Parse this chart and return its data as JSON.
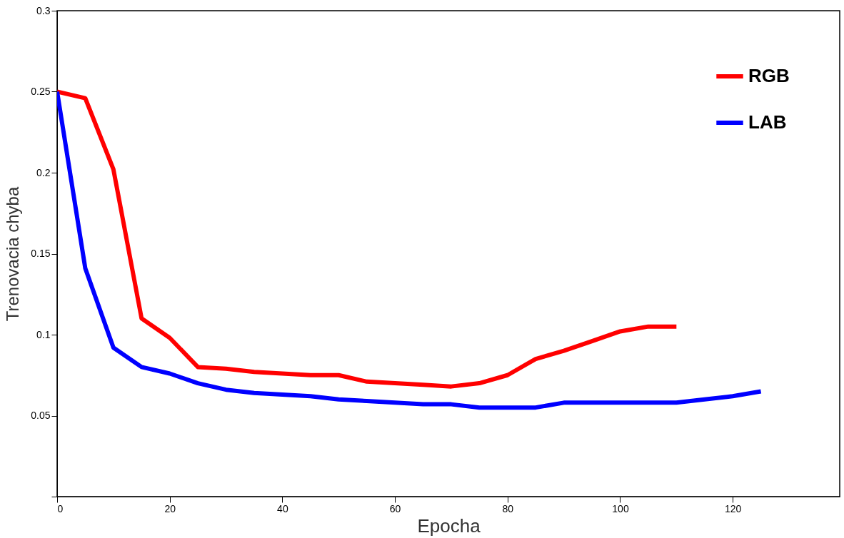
{
  "chart_data": {
    "type": "line",
    "xlabel": "Epocha",
    "ylabel": "Trenovacia chyba",
    "x": [
      0,
      5,
      10,
      15,
      20,
      25,
      30,
      35,
      40,
      45,
      50,
      55,
      60,
      65,
      70,
      75,
      80,
      85,
      90,
      95,
      100,
      105,
      110,
      115,
      120,
      125
    ],
    "series": [
      {
        "name": "RGB",
        "color": "#ff0000",
        "values": [
          0.25,
          0.246,
          0.202,
          0.11,
          0.098,
          0.08,
          0.079,
          0.077,
          0.076,
          0.075,
          0.075,
          0.071,
          0.07,
          0.069,
          0.068,
          0.07,
          0.075,
          0.085,
          0.09,
          0.096,
          0.102,
          0.105,
          0.105,
          null,
          null,
          null
        ]
      },
      {
        "name": "LAB",
        "color": "#0000ff",
        "values": [
          0.25,
          0.141,
          0.092,
          0.08,
          0.076,
          0.07,
          0.066,
          0.064,
          0.063,
          0.062,
          0.06,
          0.059,
          0.058,
          0.057,
          0.057,
          0.055,
          0.055,
          0.055,
          0.058,
          0.058,
          0.058,
          0.058,
          0.058,
          0.06,
          0.062,
          0.065
        ]
      }
    ],
    "xlim": [
      0,
      139
    ],
    "xticks": [
      0,
      20,
      40,
      60,
      80,
      100,
      120
    ],
    "ylim": [
      0,
      0.3
    ],
    "yticks": [
      {
        "value": 0,
        "label": null
      },
      0.05,
      0.1,
      0.15,
      0.2,
      0.25,
      0.3
    ],
    "legend": "top right",
    "grid": false,
    "marker": "none",
    "line_style": "solid"
  }
}
